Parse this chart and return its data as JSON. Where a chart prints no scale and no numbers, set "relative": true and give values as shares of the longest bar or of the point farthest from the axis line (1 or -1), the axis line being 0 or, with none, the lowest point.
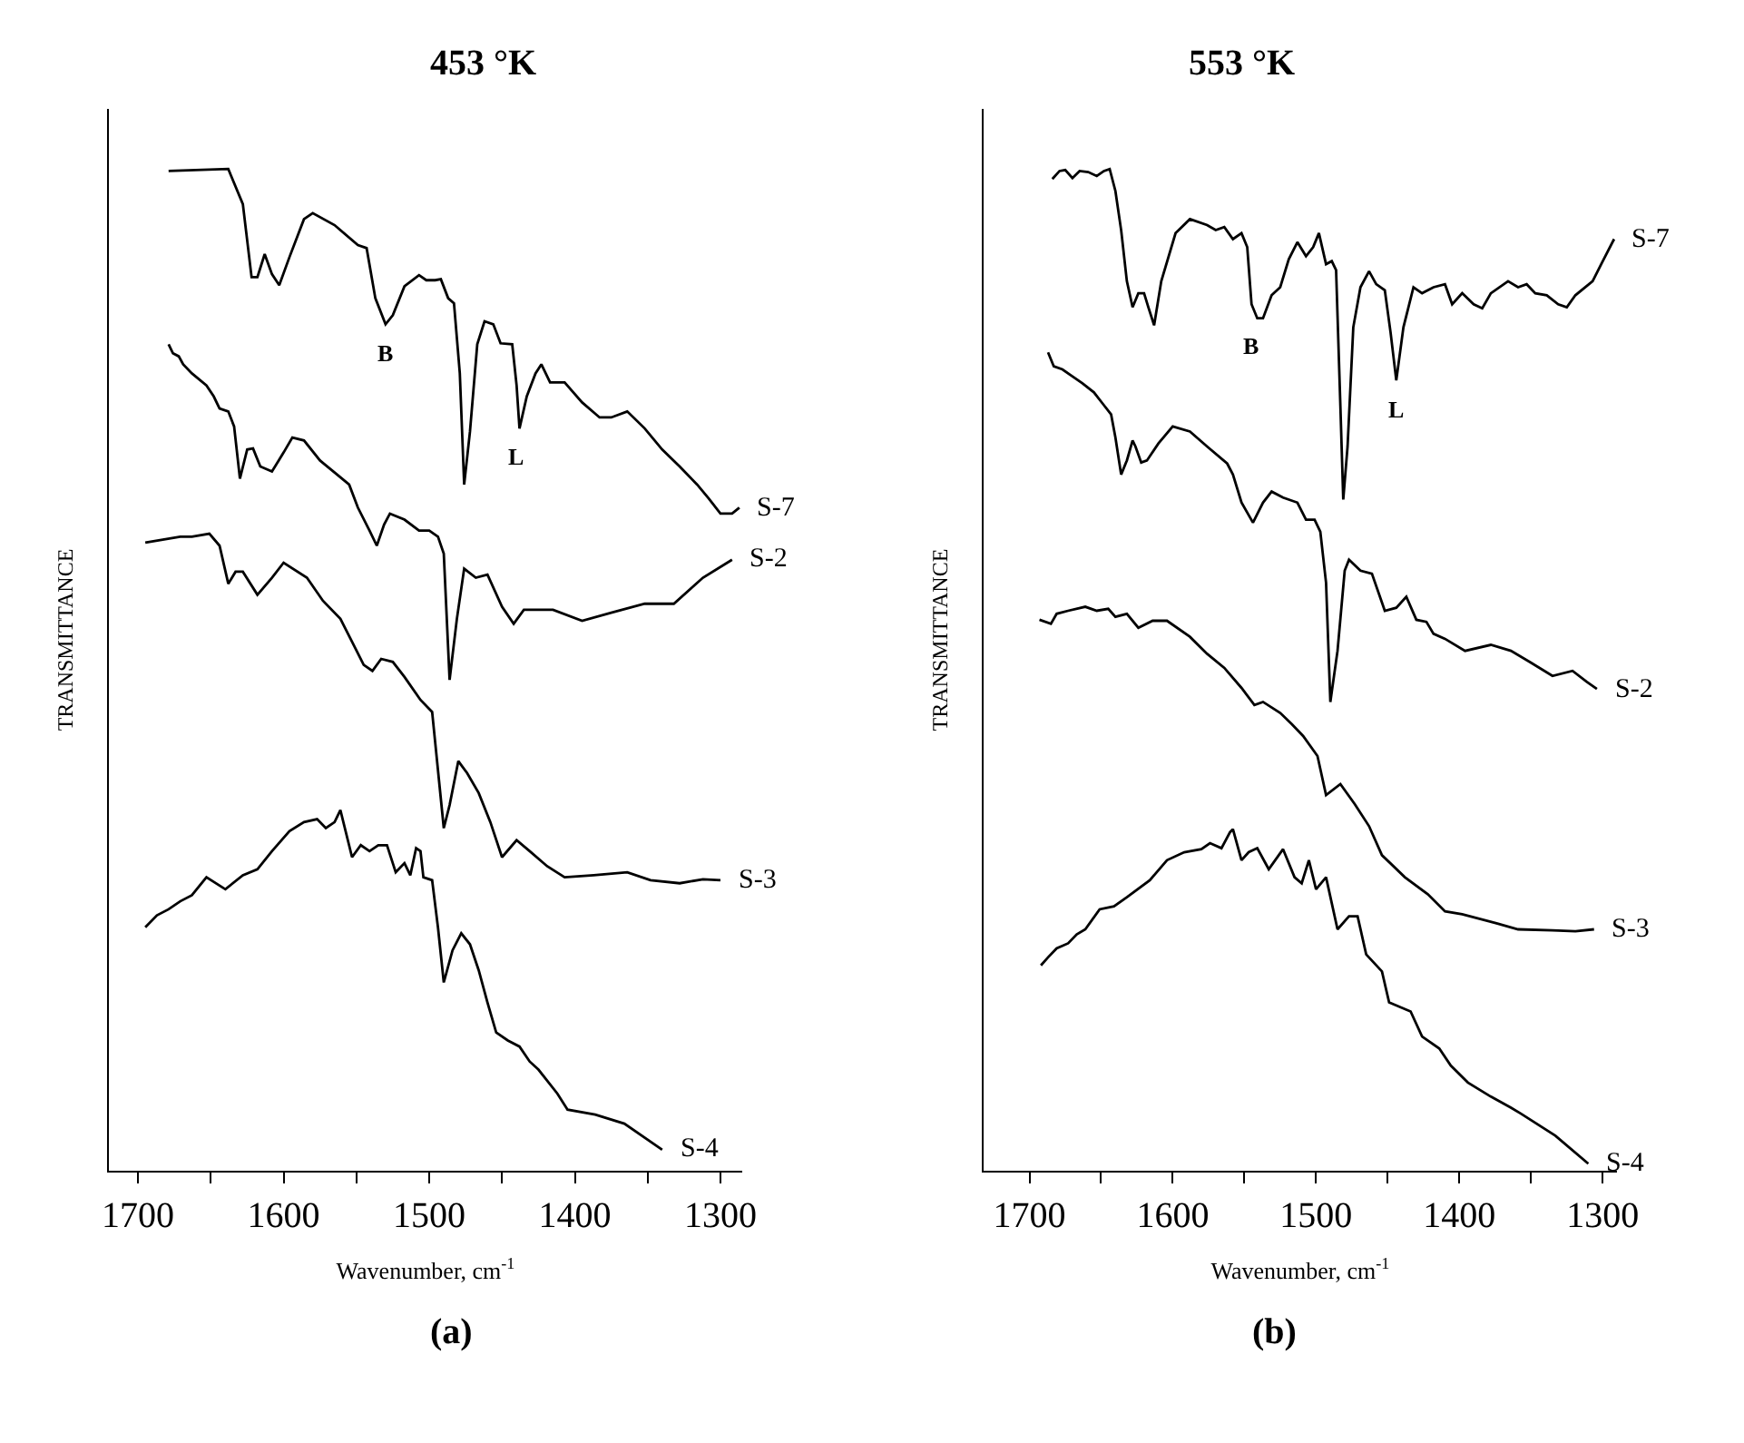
{
  "chart_data": [
    {
      "type": "line",
      "title": "453 °K",
      "xlabel": "Wavenumber, cm$^{-1}$",
      "ylabel": "TRANSMITTANCE",
      "relative": true,
      "legend": false,
      "xlim": [
        1720,
        1285
      ],
      "xticks": [
        1700,
        {
          "value": 1650,
          "label": null
        },
        1600,
        {
          "value": 1550,
          "label": null
        },
        1500,
        {
          "value": 1450,
          "label": null
        },
        1400,
        {
          "value": 1350,
          "label": null
        },
        1300
      ],
      "annotations": [
        "(a)",
        {
          "text": "B",
          "x": 1530,
          "y": 0.845
        },
        {
          "text": "L",
          "x": 1440,
          "y": 0.741
        }
      ],
      "series": [
        {
          "name": "S-7",
          "color": "#000000",
          "x": [
            1679,
            1638,
            1628,
            1622,
            1618,
            1613,
            1608,
            1603,
            1596,
            1586,
            1580,
            1565,
            1549,
            1543,
            1537,
            1530,
            1525,
            1517,
            1507,
            1502,
            1496,
            1492,
            1487,
            1483,
            1479,
            1476,
            1472,
            1467,
            1462,
            1456,
            1451,
            1443,
            1440,
            1438,
            1433,
            1427,
            1423,
            1417,
            1407,
            1395,
            1383,
            1375,
            1364,
            1352,
            1340,
            1328,
            1316,
            1308,
            1300,
            1292,
            1287
          ],
          "values": [
            0.998,
            1.0,
            0.965,
            0.892,
            0.892,
            0.915,
            0.895,
            0.884,
            0.912,
            0.95,
            0.956,
            0.944,
            0.924,
            0.921,
            0.871,
            0.845,
            0.854,
            0.883,
            0.894,
            0.889,
            0.889,
            0.89,
            0.871,
            0.866,
            0.796,
            0.685,
            0.738,
            0.825,
            0.848,
            0.845,
            0.826,
            0.825,
            0.784,
            0.741,
            0.773,
            0.796,
            0.805,
            0.787,
            0.787,
            0.767,
            0.752,
            0.752,
            0.758,
            0.741,
            0.72,
            0.703,
            0.685,
            0.671,
            0.656,
            0.656,
            0.662
          ]
        },
        {
          "name": "S-2",
          "color": "#000000",
          "x": [
            1679,
            1676,
            1672,
            1669,
            1663,
            1653,
            1648,
            1644,
            1638,
            1634,
            1630,
            1625,
            1621,
            1616,
            1608,
            1600,
            1594,
            1586,
            1575,
            1565,
            1555,
            1549,
            1541,
            1536,
            1531,
            1527,
            1517,
            1507,
            1500,
            1494,
            1490,
            1486,
            1481,
            1476,
            1468,
            1460,
            1450,
            1442,
            1435,
            1415,
            1395,
            1375,
            1352,
            1332,
            1312,
            1292
          ],
          "values": [
            0.825,
            0.816,
            0.813,
            0.805,
            0.796,
            0.784,
            0.773,
            0.761,
            0.758,
            0.743,
            0.691,
            0.72,
            0.721,
            0.703,
            0.698,
            0.717,
            0.732,
            0.729,
            0.709,
            0.697,
            0.685,
            0.662,
            0.639,
            0.624,
            0.645,
            0.656,
            0.65,
            0.639,
            0.639,
            0.633,
            0.616,
            0.49,
            0.551,
            0.601,
            0.592,
            0.595,
            0.563,
            0.546,
            0.56,
            0.56,
            0.549,
            0.557,
            0.566,
            0.566,
            0.592,
            0.61
          ]
        },
        {
          "name": "S-3",
          "color": "#000000",
          "x": [
            1695,
            1683,
            1671,
            1663,
            1651,
            1644,
            1638,
            1633,
            1628,
            1618,
            1608,
            1600,
            1584,
            1573,
            1561,
            1553,
            1545,
            1539,
            1533,
            1525,
            1517,
            1506,
            1498,
            1494,
            1490,
            1486,
            1480,
            1474,
            1466,
            1458,
            1450,
            1440,
            1431,
            1419,
            1407,
            1387,
            1364,
            1348,
            1328,
            1312,
            1300
          ],
          "values": [
            0.627,
            0.63,
            0.633,
            0.633,
            0.636,
            0.624,
            0.586,
            0.598,
            0.598,
            0.575,
            0.592,
            0.607,
            0.592,
            0.569,
            0.551,
            0.528,
            0.505,
            0.499,
            0.511,
            0.508,
            0.493,
            0.47,
            0.458,
            0.4,
            0.342,
            0.365,
            0.409,
            0.397,
            0.377,
            0.348,
            0.313,
            0.33,
            0.319,
            0.304,
            0.293,
            0.295,
            0.298,
            0.29,
            0.287,
            0.291,
            0.29
          ]
        },
        {
          "name": "S-4",
          "color": "#000000",
          "x": [
            1695,
            1687,
            1679,
            1671,
            1663,
            1653,
            1640,
            1628,
            1618,
            1608,
            1596,
            1586,
            1577,
            1571,
            1565,
            1561,
            1553,
            1547,
            1541,
            1535,
            1529,
            1523,
            1517,
            1513,
            1509,
            1506,
            1504,
            1498,
            1494,
            1490,
            1484,
            1478,
            1472,
            1466,
            1460,
            1454,
            1446,
            1438,
            1431,
            1425,
            1412,
            1405,
            1386,
            1366,
            1340
          ],
          "values": [
            0.243,
            0.255,
            0.261,
            0.269,
            0.275,
            0.293,
            0.281,
            0.295,
            0.301,
            0.319,
            0.339,
            0.348,
            0.351,
            0.342,
            0.348,
            0.36,
            0.313,
            0.325,
            0.319,
            0.325,
            0.325,
            0.298,
            0.307,
            0.295,
            0.322,
            0.319,
            0.293,
            0.29,
            0.243,
            0.188,
            0.22,
            0.237,
            0.226,
            0.2,
            0.168,
            0.138,
            0.13,
            0.124,
            0.109,
            0.101,
            0.077,
            0.061,
            0.056,
            0.047,
            0.021
          ]
        }
      ]
    },
    {
      "type": "line",
      "title": "553 °K",
      "xlabel": "Wavenumber, cm$^{-1}$",
      "ylabel": "TRANSMITTANCE",
      "relative": true,
      "legend": false,
      "xlim": [
        1732,
        1290
      ],
      "xticks": [
        1700,
        {
          "value": 1650,
          "label": null
        },
        1600,
        {
          "value": 1550,
          "label": null
        },
        1500,
        {
          "value": 1450,
          "label": null
        },
        1400,
        {
          "value": 1350,
          "label": null
        },
        1300
      ],
      "annotations": [
        "(b)",
        {
          "text": "B",
          "x": 1545,
          "y": 0.851
        },
        {
          "text": "L",
          "x": 1444,
          "y": 0.789
        }
      ],
      "series": [
        {
          "name": "S-7",
          "color": "#000000",
          "x": [
            1684,
            1679,
            1675,
            1670,
            1665,
            1659,
            1653,
            1648,
            1644,
            1640,
            1636,
            1632,
            1628,
            1624,
            1620,
            1617,
            1613,
            1608,
            1598,
            1588,
            1576,
            1570,
            1564,
            1558,
            1552,
            1548,
            1545,
            1541,
            1537,
            1531,
            1525,
            1519,
            1513,
            1507,
            1502,
            1498,
            1493,
            1489,
            1486,
            1483,
            1481,
            1478,
            1474,
            1469,
            1463,
            1458,
            1452,
            1448,
            1444,
            1439,
            1432,
            1426,
            1418,
            1410,
            1405,
            1398,
            1390,
            1384,
            1378,
            1366,
            1359,
            1353,
            1347,
            1339,
            1331,
            1325,
            1319,
            1307,
            1301,
            1292
          ],
          "values": [
            0.99,
            0.998,
            0.999,
            0.991,
            0.998,
            0.997,
            0.993,
            0.998,
            1.0,
            0.978,
            0.939,
            0.888,
            0.862,
            0.876,
            0.876,
            0.862,
            0.844,
            0.888,
            0.936,
            0.95,
            0.944,
            0.939,
            0.942,
            0.93,
            0.936,
            0.922,
            0.865,
            0.851,
            0.851,
            0.874,
            0.882,
            0.91,
            0.927,
            0.913,
            0.922,
            0.936,
            0.905,
            0.908,
            0.899,
            0.763,
            0.67,
            0.723,
            0.842,
            0.882,
            0.898,
            0.885,
            0.879,
            0.837,
            0.789,
            0.842,
            0.882,
            0.876,
            0.882,
            0.885,
            0.865,
            0.876,
            0.865,
            0.861,
            0.876,
            0.888,
            0.882,
            0.885,
            0.876,
            0.874,
            0.865,
            0.862,
            0.874,
            0.888,
            0.905,
            0.93
          ]
        },
        {
          "name": "S-2",
          "color": "#000000",
          "x": [
            1687,
            1683,
            1677,
            1671,
            1663,
            1655,
            1649,
            1643,
            1640,
            1636,
            1632,
            1628,
            1626,
            1622,
            1618,
            1610,
            1600,
            1588,
            1576,
            1562,
            1558,
            1552,
            1544,
            1537,
            1531,
            1523,
            1513,
            1507,
            1501,
            1497,
            1493,
            1490,
            1485,
            1480,
            1477,
            1469,
            1461,
            1452,
            1444,
            1437,
            1430,
            1423,
            1418,
            1410,
            1396,
            1378,
            1364,
            1351,
            1335,
            1321,
            1311,
            1304
          ],
          "values": [
            0.817,
            0.803,
            0.8,
            0.794,
            0.786,
            0.777,
            0.766,
            0.755,
            0.732,
            0.695,
            0.709,
            0.729,
            0.723,
            0.707,
            0.709,
            0.726,
            0.743,
            0.738,
            0.723,
            0.706,
            0.695,
            0.667,
            0.647,
            0.667,
            0.678,
            0.672,
            0.667,
            0.65,
            0.65,
            0.638,
            0.587,
            0.468,
            0.519,
            0.599,
            0.61,
            0.599,
            0.596,
            0.559,
            0.562,
            0.573,
            0.55,
            0.548,
            0.536,
            0.531,
            0.519,
            0.525,
            0.519,
            0.508,
            0.494,
            0.499,
            0.488,
            0.481
          ]
        },
        {
          "name": "S-3",
          "color": "#000000",
          "x": [
            1693,
            1685,
            1681,
            1673,
            1661,
            1653,
            1645,
            1640,
            1632,
            1624,
            1614,
            1604,
            1588,
            1576,
            1564,
            1552,
            1543,
            1537,
            1525,
            1517,
            1509,
            1499,
            1493,
            1483,
            1473,
            1463,
            1454,
            1438,
            1422,
            1410,
            1398,
            1374,
            1359,
            1335,
            1319,
            1306
          ],
          "values": [
            0.55,
            0.546,
            0.556,
            0.559,
            0.563,
            0.559,
            0.561,
            0.553,
            0.556,
            0.542,
            0.549,
            0.549,
            0.533,
            0.516,
            0.502,
            0.482,
            0.465,
            0.468,
            0.457,
            0.446,
            0.434,
            0.414,
            0.375,
            0.386,
            0.366,
            0.344,
            0.315,
            0.293,
            0.276,
            0.259,
            0.256,
            0.247,
            0.241,
            0.24,
            0.239,
            0.241
          ]
        },
        {
          "name": "S-4",
          "color": "#000000",
          "x": [
            1692,
            1687,
            1681,
            1673,
            1667,
            1661,
            1651,
            1641,
            1632,
            1616,
            1604,
            1592,
            1580,
            1574,
            1566,
            1560,
            1558,
            1552,
            1547,
            1541,
            1533,
            1523,
            1515,
            1510,
            1505,
            1500,
            1493,
            1485,
            1477,
            1471,
            1465,
            1454,
            1449,
            1434,
            1426,
            1414,
            1406,
            1394,
            1378,
            1364,
            1357,
            1333,
            1310
          ],
          "values": [
            0.205,
            0.213,
            0.222,
            0.227,
            0.236,
            0.241,
            0.261,
            0.264,
            0.273,
            0.29,
            0.31,
            0.318,
            0.321,
            0.327,
            0.322,
            0.338,
            0.341,
            0.31,
            0.318,
            0.322,
            0.301,
            0.321,
            0.293,
            0.287,
            0.31,
            0.281,
            0.293,
            0.241,
            0.254,
            0.254,
            0.216,
            0.199,
            0.168,
            0.159,
            0.134,
            0.122,
            0.105,
            0.088,
            0.074,
            0.063,
            0.057,
            0.035,
            0.007
          ]
        }
      ]
    }
  ]
}
